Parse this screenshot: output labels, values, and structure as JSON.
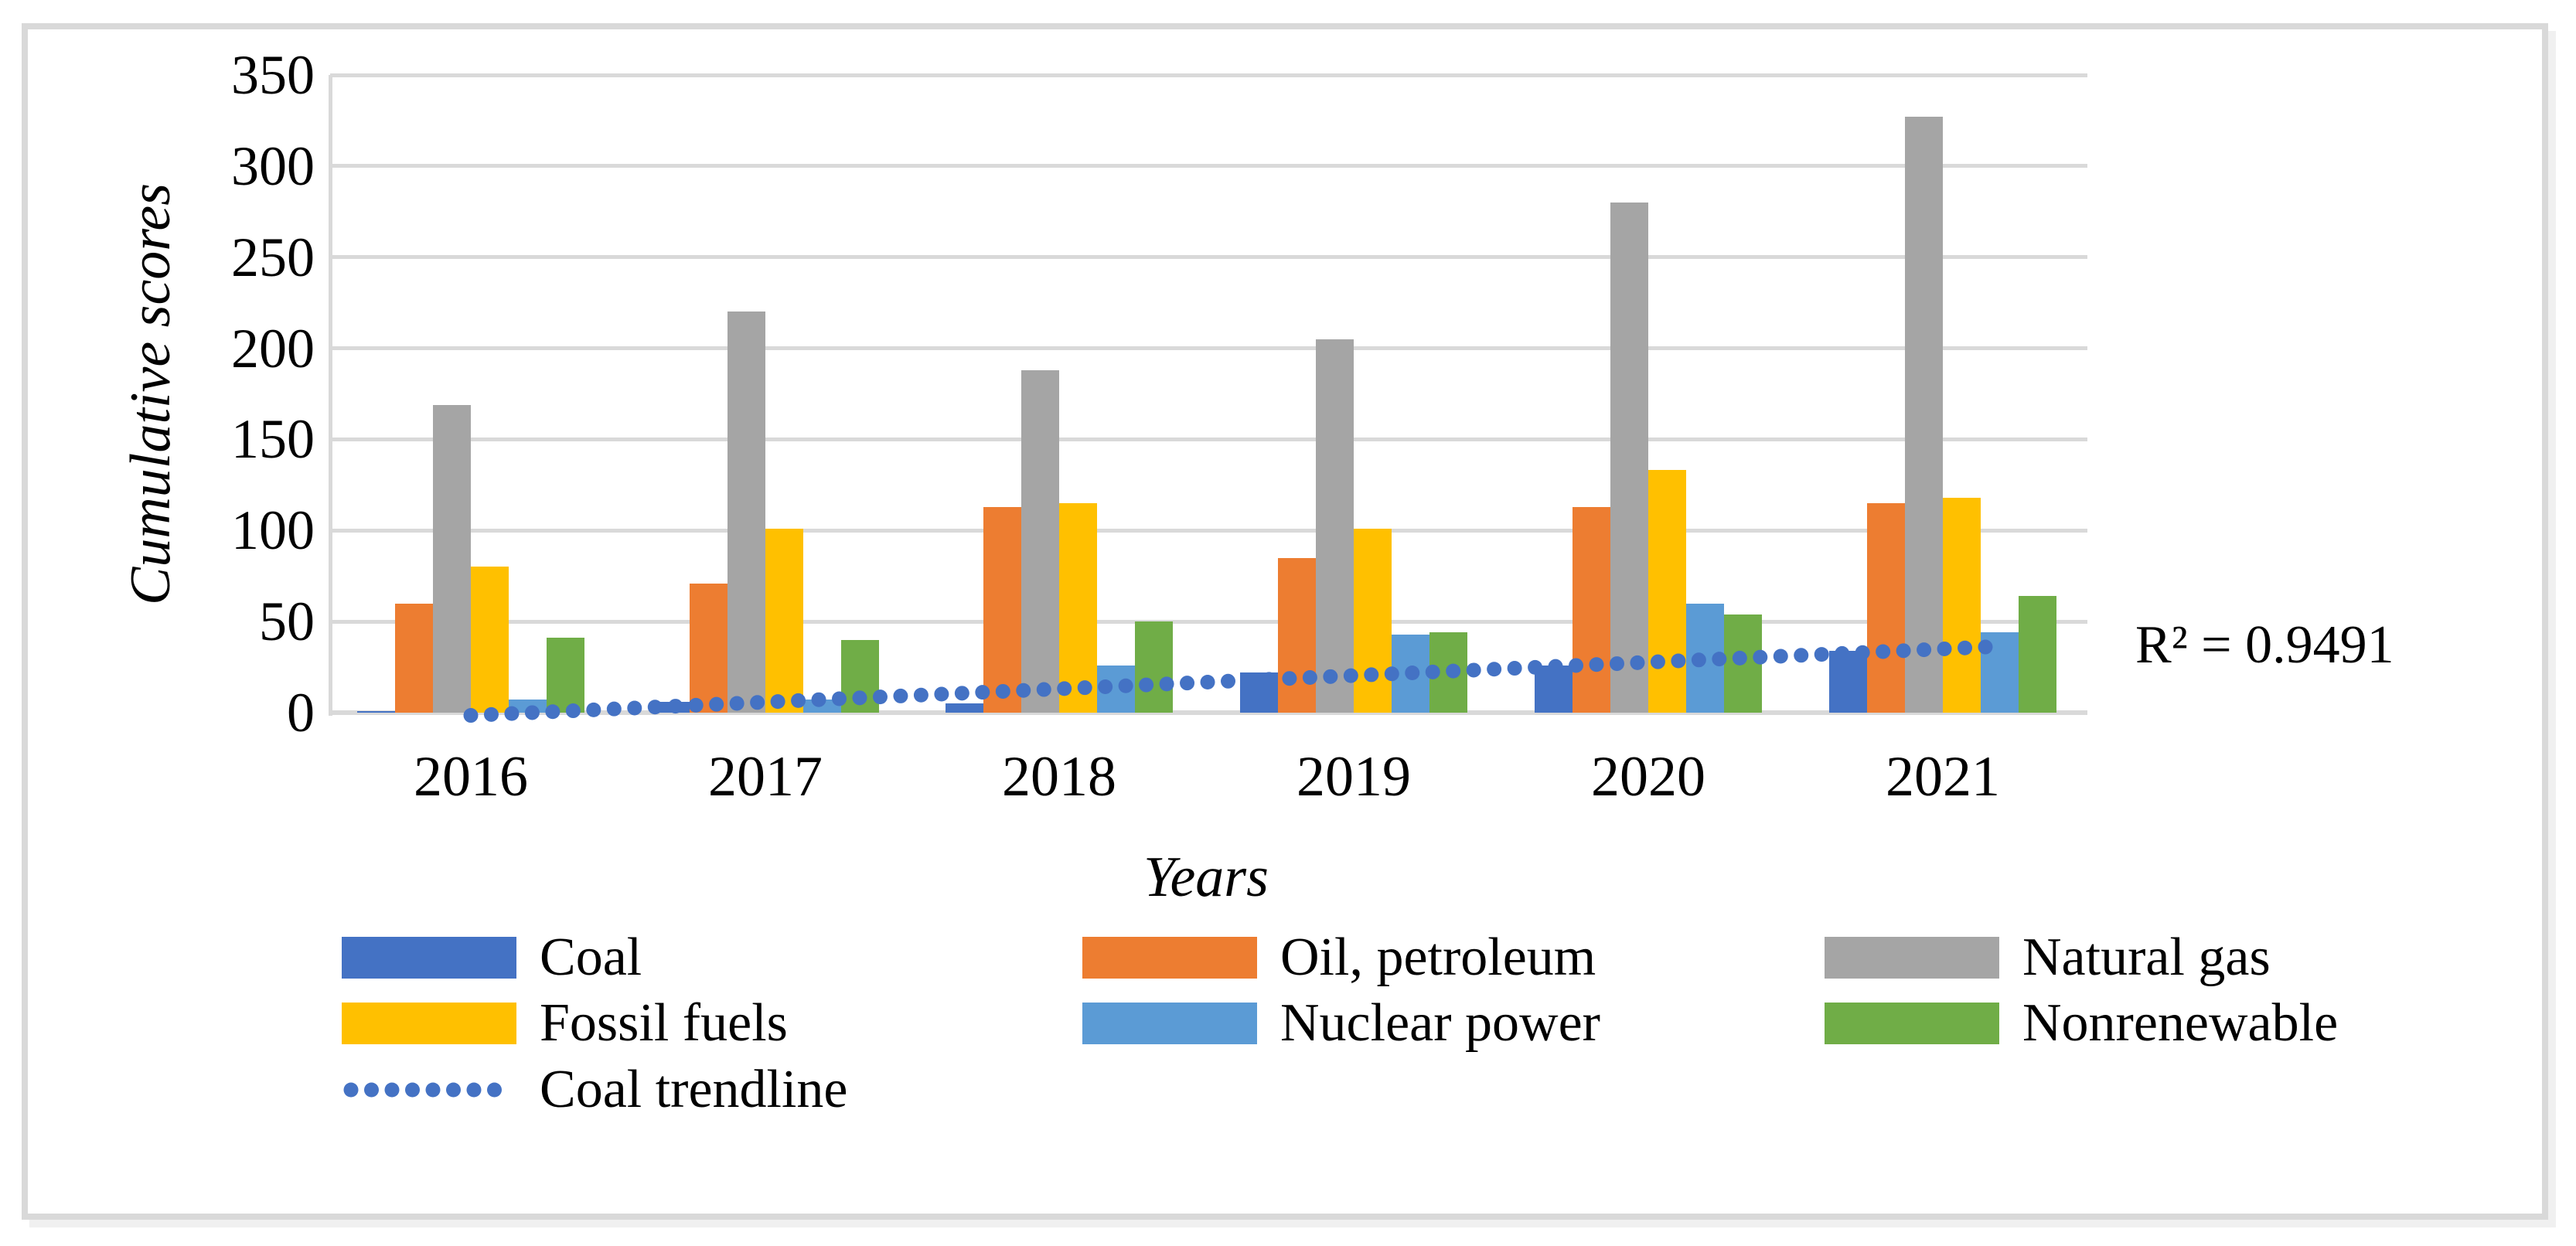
{
  "page": {
    "background": "#FFFFFF",
    "frame_border_color": "#D9D9D9"
  },
  "annotation": {
    "r_squared": "R² = 0.9491"
  },
  "chart_data": {
    "type": "bar",
    "title": "",
    "categories": [
      "2016",
      "2017",
      "2018",
      "2019",
      "2020",
      "2021"
    ],
    "series": [
      {
        "name": "Coal",
        "color": "#4472C4",
        "values": [
          1,
          6,
          5,
          22,
          26,
          34
        ]
      },
      {
        "name": "Oil, petroleum",
        "color": "#ED7D31",
        "values": [
          60,
          71,
          113,
          85,
          113,
          115
        ]
      },
      {
        "name": "Natural gas",
        "color": "#A5A5A5",
        "values": [
          169,
          220,
          188,
          205,
          280,
          327
        ]
      },
      {
        "name": "Fossil fuels",
        "color": "#FFC000",
        "values": [
          80,
          101,
          115,
          101,
          133,
          118
        ]
      },
      {
        "name": "Nuclear power",
        "color": "#5B9BD5",
        "values": [
          7,
          7,
          26,
          43,
          60,
          44
        ]
      },
      {
        "name": "Nonrenewable",
        "color": "#70AD47",
        "values": [
          41,
          40,
          50,
          44,
          54,
          64
        ]
      }
    ],
    "trendline": {
      "name": "Coal trendline",
      "for_series": "Coal",
      "color": "#4472C4",
      "style": "dotted",
      "start_value": -1.5,
      "end_value": 36.5,
      "r_squared": 0.9491
    },
    "xlabel": "Years",
    "ylabel": "Cumulative scores",
    "ylim": [
      0,
      350
    ],
    "ytick_step": 50,
    "grid": true,
    "gridline_color": "#D9D9D9",
    "legend_position": "bottom",
    "legend_rows": [
      [
        "Coal",
        "Oil, petroleum",
        "Natural gas"
      ],
      [
        "Fossil fuels",
        "Nuclear power",
        "Nonrenewable"
      ],
      [
        "Coal trendline"
      ]
    ]
  }
}
